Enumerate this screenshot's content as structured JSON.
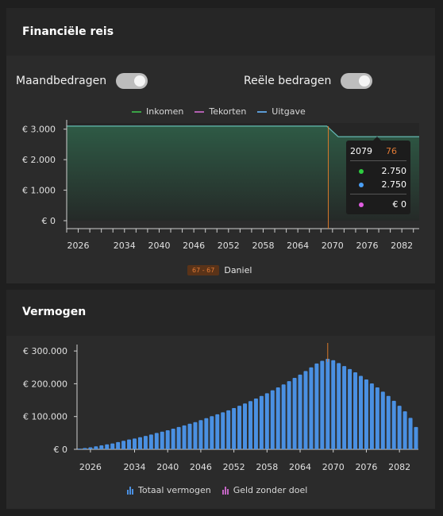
{
  "financial_journey": {
    "title": "Financiële reis",
    "toggles": [
      {
        "label": "Maandbedragen",
        "on": true
      },
      {
        "label": "Reële bedragen",
        "on": true
      }
    ],
    "legend": [
      {
        "label": "Inkomen",
        "color": "#3aa346"
      },
      {
        "label": "Tekorten",
        "color": "#b25fb0"
      },
      {
        "label": "Uitgave",
        "color": "#5b9bd5"
      }
    ],
    "tooltip": {
      "year": "2079",
      "age": "76",
      "rows": [
        {
          "color": "#2ecc40",
          "value": "2.750"
        },
        {
          "color": "#4a9ff5",
          "value": "2.750"
        },
        {
          "color": "#e05de0",
          "value": "€ 0"
        }
      ]
    },
    "person": {
      "age_badge": "67 - 67",
      "name": "Daniel"
    }
  },
  "chart_data": [
    {
      "type": "area",
      "series": [
        {
          "name": "Inkomen",
          "points": [
            [
              2024,
              3100
            ],
            [
              2069,
              3100
            ],
            [
              2071,
              2750
            ],
            [
              2085,
              2750
            ]
          ]
        },
        {
          "name": "Uitgave",
          "points": [
            [
              2024,
              3100
            ],
            [
              2069,
              3100
            ],
            [
              2071,
              2750
            ],
            [
              2085,
              2750
            ]
          ]
        }
      ],
      "ylim": [
        0,
        3200
      ],
      "y_ticks": [
        {
          "v": 0,
          "label": "€ 0"
        },
        {
          "v": 1000,
          "label": "€ 1.000"
        },
        {
          "v": 2000,
          "label": "€ 2.000"
        },
        {
          "v": 3000,
          "label": "€ 3.000"
        }
      ],
      "x_tick_labels": [
        "2026",
        "2034",
        "2040",
        "2046",
        "2052",
        "2058",
        "2064",
        "2070",
        "2076",
        "2082"
      ],
      "marker_year": 2069
    },
    {
      "type": "bar",
      "title": "Vermogen",
      "series": [
        {
          "name": "Totaal vermogen",
          "x": [
            2024,
            2025,
            2026,
            2027,
            2028,
            2029,
            2030,
            2031,
            2032,
            2033,
            2034,
            2035,
            2036,
            2037,
            2038,
            2039,
            2040,
            2041,
            2042,
            2043,
            2044,
            2045,
            2046,
            2047,
            2048,
            2049,
            2050,
            2051,
            2052,
            2053,
            2054,
            2055,
            2056,
            2057,
            2058,
            2059,
            2060,
            2061,
            2062,
            2063,
            2064,
            2065,
            2066,
            2067,
            2068,
            2069,
            2070,
            2071,
            2072,
            2073,
            2074,
            2075,
            2076,
            2077,
            2078,
            2079,
            2080,
            2081,
            2082,
            2083,
            2084,
            2085
          ],
          "values": [
            2000,
            4000,
            6000,
            9000,
            12000,
            15000,
            18000,
            22000,
            26000,
            30000,
            33000,
            37000,
            41000,
            45000,
            50000,
            54000,
            58000,
            63000,
            68000,
            73000,
            78000,
            83000,
            89000,
            95000,
            101000,
            107000,
            113000,
            119000,
            126000,
            133000,
            140000,
            147000,
            155000,
            163000,
            171000,
            180000,
            189000,
            198000,
            208000,
            218000,
            228000,
            239000,
            250000,
            262000,
            270000,
            276000,
            272000,
            263000,
            254000,
            245000,
            235000,
            224000,
            213000,
            201000,
            189000,
            176000,
            163000,
            148000,
            133000,
            116000,
            96000,
            68000
          ]
        },
        {
          "name": "Geld zonder doel",
          "values": []
        }
      ],
      "ylim": [
        0,
        310000
      ],
      "y_ticks": [
        {
          "v": 0,
          "label": "€ 0"
        },
        {
          "v": 100000,
          "label": "€ 100.000"
        },
        {
          "v": 200000,
          "label": "€ 200.000"
        },
        {
          "v": 300000,
          "label": "€ 300.000"
        }
      ],
      "x_tick_labels": [
        "2026",
        "2034",
        "2040",
        "2046",
        "2052",
        "2058",
        "2064",
        "2070",
        "2076",
        "2082"
      ],
      "marker_year": 2069,
      "legend": [
        {
          "label": "Totaal vermogen",
          "color": "#4a90e2"
        },
        {
          "label": "Geld zonder doel",
          "color": "#c466c4"
        }
      ]
    }
  ]
}
